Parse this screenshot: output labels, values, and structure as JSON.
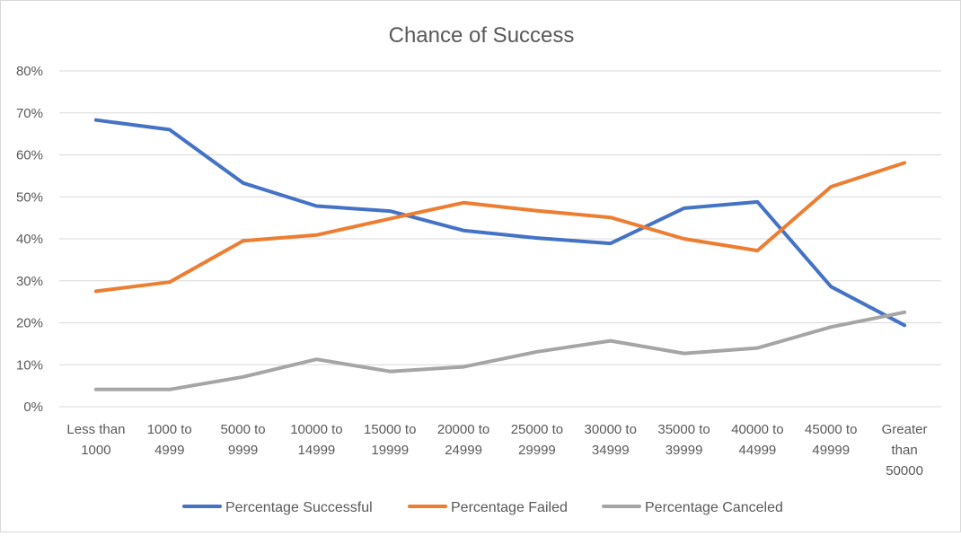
{
  "chart_data": {
    "type": "line",
    "title": "Chance of Success",
    "xlabel": "",
    "ylabel": "",
    "ylim": [
      0,
      0.8
    ],
    "yticks": [
      "0%",
      "10%",
      "20%",
      "30%",
      "40%",
      "50%",
      "60%",
      "70%",
      "80%"
    ],
    "grid": true,
    "legend_position": "bottom",
    "categories": [
      "Less than 1000",
      "1000 to 4999",
      "5000 to 9999",
      "10000 to 14999",
      "15000 to 19999",
      "20000 to 24999",
      "25000 to 29999",
      "30000 to 34999",
      "35000 to 39999",
      "40000 to 44999",
      "45000 to 49999",
      "Greater than 50000"
    ],
    "series": [
      {
        "name": "Percentage Successful",
        "color": "#4472c4",
        "values": [
          0.683,
          0.66,
          0.533,
          0.478,
          0.466,
          0.42,
          0.402,
          0.389,
          0.473,
          0.488,
          0.286,
          0.194
        ]
      },
      {
        "name": "Percentage Failed",
        "color": "#ed7d31",
        "values": [
          0.275,
          0.297,
          0.395,
          0.409,
          0.448,
          0.486,
          0.467,
          0.451,
          0.4,
          0.372,
          0.524,
          0.581
        ]
      },
      {
        "name": "Percentage Canceled",
        "color": "#a5a5a5",
        "values": [
          0.041,
          0.041,
          0.071,
          0.113,
          0.084,
          0.095,
          0.131,
          0.157,
          0.127,
          0.14,
          0.19,
          0.225
        ]
      }
    ]
  }
}
